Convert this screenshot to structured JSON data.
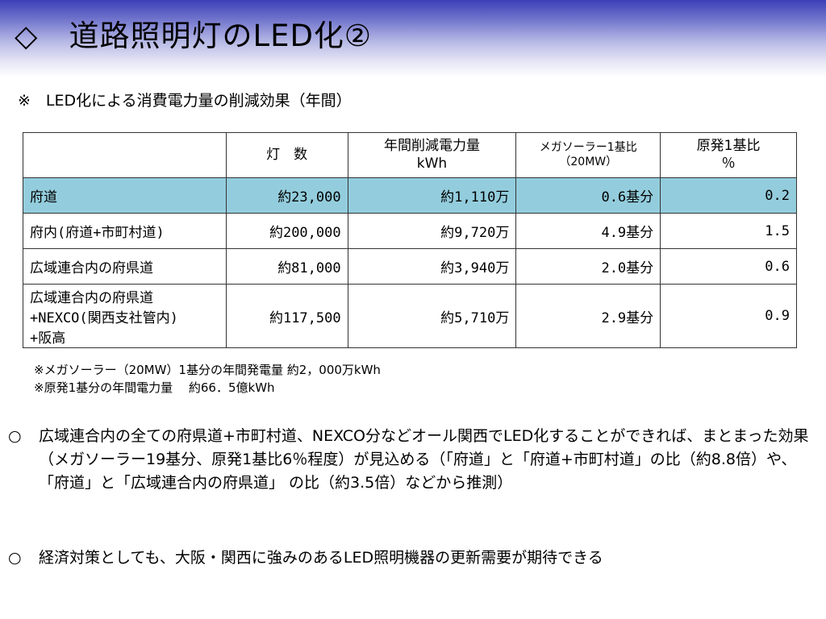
{
  "header": {
    "title": "◇　道路照明灯のLED化②"
  },
  "subtitle": "※　LED化による消費電力量の削減効果（年間）",
  "table": {
    "headers": {
      "col1": "",
      "col2": "灯　数",
      "col3_line1": "年間削減電力量",
      "col3_line2": "kWh",
      "col4_line1": "メガソーラー1基比",
      "col4_line2": "（20MW）",
      "col5_line1": "原発1基比",
      "col5_line2": "％"
    },
    "rows": [
      {
        "name": "府道",
        "count": "約23,000",
        "kwh": "約1,110万",
        "mega": "0.6基分",
        "nuke": "0.2"
      },
      {
        "name": "府内(府道+市町村道)",
        "count": "約200,000",
        "kwh": "約9,720万",
        "mega": "4.9基分",
        "nuke": "1.5"
      },
      {
        "name": "広域連合内の府県道",
        "count": "約81,000",
        "kwh": "約3,940万",
        "mega": "2.0基分",
        "nuke": "0.6"
      },
      {
        "name_line1": "広域連合内の府県道",
        "name_line2": "+NEXCO(関西支社管内)",
        "name_line3": "+阪高",
        "count": "約117,500",
        "kwh": "約5,710万",
        "mega": "2.9基分",
        "nuke": "0.9"
      }
    ]
  },
  "notes": {
    "note1": "※メガソーラー（20MW）1基分の年間発電量 約2，000万kWh",
    "note2": "※原発1基分の年間電力量　 約66．5億kWh"
  },
  "bullets": {
    "b1_mark": "○",
    "b1_text": "広域連合内の全ての府県道+市町村道、NEXCO分などオール関西でLED化することができれば、まとまった効果（メガソーラー19基分、原発1基比6％程度）が見込める（「府道」と「府道+市町村道」の比（約8.8倍）や、「府道」と「広域連合内の府県道」 の比（約3.5倍）などから推測）",
    "b2_mark": "○",
    "b2_text": "経済対策としても、大阪・関西に強みのあるLED照明機器の更新需要が期待できる"
  },
  "colors": {
    "header_dark": "#3c40b8",
    "highlight_row": "#93cddd"
  }
}
